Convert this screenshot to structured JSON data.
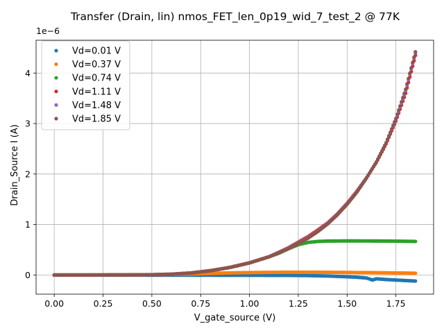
{
  "chart_data": {
    "type": "scatter",
    "title": "Transfer (Drain, lin) nmos_FET_len_0p19_wid_7_test_2 @ 77K",
    "xlabel": "V_gate_source (V)",
    "ylabel": "Drain_Source I (A)",
    "y_scale_label": "1e−6",
    "xlim": [
      -0.093,
      1.943
    ],
    "ylim": [
      -3.8e-07,
      4.65e-06
    ],
    "x_ticks": [
      0.0,
      0.25,
      0.5,
      0.75,
      1.0,
      1.25,
      1.5,
      1.75
    ],
    "x_tick_labels": [
      "0.00",
      "0.25",
      "0.50",
      "0.75",
      "1.00",
      "1.25",
      "1.50",
      "1.75"
    ],
    "y_ticks": [
      0,
      1e-06,
      2e-06,
      3e-06,
      4e-06
    ],
    "y_tick_labels": [
      "0",
      "1",
      "2",
      "3",
      "4"
    ],
    "grid": true,
    "legend_position": "top-left",
    "series": [
      {
        "name": "Vd=0.01 V",
        "color": "#1f77b4",
        "x": [
          0.0,
          0.2,
          0.4,
          0.6,
          0.8,
          1.0,
          1.2,
          1.3,
          1.4,
          1.5,
          1.55,
          1.6,
          1.63,
          1.65,
          1.7,
          1.75,
          1.8,
          1.85
        ],
        "y": [
          -2e-09,
          -2e-09,
          -3e-09,
          -4e-09,
          -5e-09,
          -6e-09,
          -8e-09,
          -1.2e-08,
          -2e-08,
          -3.5e-08,
          -4.5e-08,
          -6e-08,
          -1e-07,
          -7.5e-08,
          -9e-08,
          -1e-07,
          -1.1e-07,
          -1.2e-07
        ]
      },
      {
        "name": "Vd=0.37 V",
        "color": "#ff7f0e",
        "x": [
          0.0,
          0.3,
          0.5,
          0.6,
          0.7,
          0.8,
          0.9,
          1.0,
          1.1,
          1.2,
          1.3,
          1.4,
          1.5,
          1.6,
          1.7,
          1.8,
          1.85
        ],
        "y": [
          0.0,
          1e-09,
          4e-09,
          1e-08,
          2e-08,
          3.2e-08,
          4.2e-08,
          4.8e-08,
          5.2e-08,
          5.5e-08,
          5.5e-08,
          5.3e-08,
          5e-08,
          4.7e-08,
          4.3e-08,
          3.8e-08,
          3.5e-08
        ]
      },
      {
        "name": "Vd=0.74 V",
        "color": "#2ca02c",
        "x": [
          0.0,
          0.3,
          0.5,
          0.6,
          0.7,
          0.8,
          0.9,
          1.0,
          1.1,
          1.15,
          1.2,
          1.25,
          1.3,
          1.35,
          1.4,
          1.5,
          1.6,
          1.7,
          1.8,
          1.85
        ],
        "y": [
          0.0,
          1e-09,
          5e-09,
          1.5e-08,
          4e-08,
          8.5e-08,
          1.5e-07,
          2.4e-07,
          3.6e-07,
          4.3e-07,
          5.2e-07,
          6e-07,
          6.45e-07,
          6.65e-07,
          6.72e-07,
          6.75e-07,
          6.74e-07,
          6.72e-07,
          6.68e-07,
          6.65e-07
        ]
      },
      {
        "name": "Vd=1.11 V",
        "color": "#d62728",
        "x": [
          0.0,
          0.3,
          0.5,
          0.6,
          0.7,
          0.8,
          0.9,
          1.0,
          1.1,
          1.2,
          1.3,
          1.35,
          1.4,
          1.45,
          1.5,
          1.55,
          1.6,
          1.65,
          1.7,
          1.75,
          1.8,
          1.85
        ],
        "y": [
          0.0,
          1e-09,
          5e-09,
          1.5e-08,
          4e-08,
          8.5e-08,
          1.5e-07,
          2.4e-07,
          3.6e-07,
          5.4e-07,
          7.6e-07,
          8.9e-07,
          1.03e-06,
          1.21e-06,
          1.42e-06,
          1.66e-06,
          1.93e-06,
          2.23e-06,
          2.6e-06,
          3.05e-06,
          3.6e-06,
          4.35e-06
        ]
      },
      {
        "name": "Vd=1.48 V",
        "color": "#9467bd",
        "x": [
          0.0,
          0.3,
          0.5,
          0.6,
          0.7,
          0.8,
          0.9,
          1.0,
          1.1,
          1.2,
          1.3,
          1.35,
          1.4,
          1.45,
          1.5,
          1.55,
          1.6,
          1.65,
          1.7,
          1.75,
          1.8,
          1.85
        ],
        "y": [
          0.0,
          1e-09,
          5e-09,
          1.5e-08,
          4e-08,
          8.5e-08,
          1.5e-07,
          2.4e-07,
          3.6e-07,
          5.3e-07,
          7.4e-07,
          8.7e-07,
          1.02e-06,
          1.2e-06,
          1.41e-06,
          1.65e-06,
          1.93e-06,
          2.24e-06,
          2.62e-06,
          3.08e-06,
          3.65e-06,
          4.4e-06
        ]
      },
      {
        "name": "Vd=1.85 V",
        "color": "#8c564b",
        "x": [
          0.0,
          0.3,
          0.5,
          0.6,
          0.7,
          0.8,
          0.9,
          1.0,
          1.1,
          1.2,
          1.3,
          1.35,
          1.4,
          1.45,
          1.5,
          1.55,
          1.6,
          1.65,
          1.7,
          1.75,
          1.8,
          1.85
        ],
        "y": [
          0.0,
          1e-09,
          5e-09,
          1.5e-08,
          4e-08,
          8.5e-08,
          1.5e-07,
          2.4e-07,
          3.6e-07,
          5.2e-07,
          7.3e-07,
          8.6e-07,
          1.01e-06,
          1.19e-06,
          1.4e-06,
          1.64e-06,
          1.92e-06,
          2.24e-06,
          2.62e-06,
          3.1e-06,
          3.68e-06,
          4.42e-06
        ]
      }
    ]
  }
}
